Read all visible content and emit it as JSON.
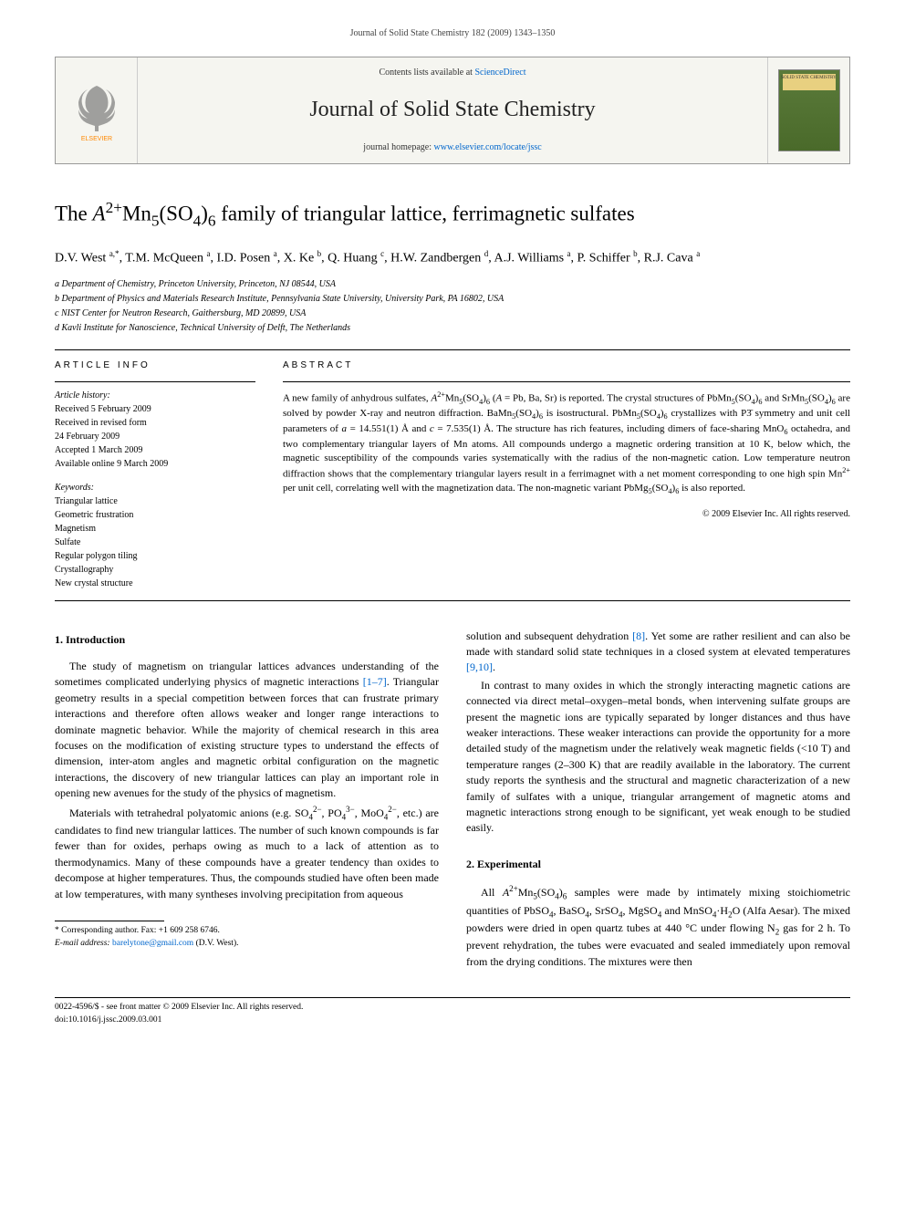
{
  "running_header": "Journal of Solid State Chemistry 182 (2009) 1343–1350",
  "banner": {
    "contents_prefix": "Contents lists available at ",
    "contents_link": "ScienceDirect",
    "journal_name": "Journal of Solid State Chemistry",
    "homepage_prefix": "journal homepage: ",
    "homepage_link": "www.elsevier.com/locate/jssc",
    "publisher": "ELSEVIER",
    "cover_text": "SOLID STATE CHEMISTRY"
  },
  "title_html": "The <i>A</i><sup>2+</sup>Mn<sub>5</sub>(SO<sub>4</sub>)<sub>6</sub> family of triangular lattice, ferrimagnetic sulfates",
  "authors_html": "D.V. West <sup>a,*</sup>, T.M. McQueen <sup>a</sup>, I.D. Posen <sup>a</sup>, X. Ke <sup>b</sup>, Q. Huang <sup>c</sup>, H.W. Zandbergen <sup>d</sup>, A.J. Williams <sup>a</sup>, P. Schiffer <sup>b</sup>, R.J. Cava <sup>a</sup>",
  "affiliations": [
    "a Department of Chemistry, Princeton University, Princeton, NJ 08544, USA",
    "b Department of Physics and Materials Research Institute, Pennsylvania State University, University Park, PA 16802, USA",
    "c NIST Center for Neutron Research, Gaithersburg, MD 20899, USA",
    "d Kavli Institute for Nanoscience, Technical University of Delft, The Netherlands"
  ],
  "info_heading": "article info",
  "history_label": "Article history:",
  "history": [
    "Received 5 February 2009",
    "Received in revised form",
    "24 February 2009",
    "Accepted 1 March 2009",
    "Available online 9 March 2009"
  ],
  "keywords_label": "Keywords:",
  "keywords": [
    "Triangular lattice",
    "Geometric frustration",
    "Magnetism",
    "Sulfate",
    "Regular polygon tiling",
    "Crystallography",
    "New crystal structure"
  ],
  "abstract_heading": "abstract",
  "abstract_html": "A new family of anhydrous sulfates, <i>A</i><sup>2+</sup>Mn<sub>5</sub>(SO<sub>4</sub>)<sub>6</sub> (<i>A</i> = Pb, Ba, Sr) is reported. The crystal structures of PbMn<sub>5</sub>(SO<sub>4</sub>)<sub>6</sub> and SrMn<sub>5</sub>(SO<sub>4</sub>)<sub>6</sub> are solved by powder X-ray and neutron diffraction. BaMn<sub>5</sub>(SO<sub>4</sub>)<sub>6</sub> is isostructural. PbMn<sub>5</sub>(SO<sub>4</sub>)<sub>6</sub> crystallizes with P3̄ symmetry and unit cell parameters of <i>a</i> = 14.551(1) Å and <i>c</i> = 7.535(1) Å. The structure has rich features, including dimers of face-sharing MnO<sub>6</sub> octahedra, and two complementary triangular layers of Mn atoms. All compounds undergo a magnetic ordering transition at 10 K, below which, the magnetic susceptibility of the compounds varies systematically with the radius of the non-magnetic cation. Low temperature neutron diffraction shows that the complementary triangular layers result in a ferrimagnet with a net moment corresponding to one high spin Mn<sup>2+</sup> per unit cell, correlating well with the magnetization data. The non-magnetic variant PbMg<sub>5</sub>(SO<sub>4</sub>)<sub>6</sub> is also reported.",
  "copyright": "© 2009 Elsevier Inc. All rights reserved.",
  "sections": {
    "intro_heading": "1.  Introduction",
    "intro_p1_html": "The study of magnetism on triangular lattices advances understanding of the sometimes complicated underlying physics of magnetic interactions <a class='ref-link' href='#'>[1–7]</a>. Triangular geometry results in a special competition between forces that can frustrate primary interactions and therefore often allows weaker and longer range interactions to dominate magnetic behavior. While the majority of chemical research in this area focuses on the modification of existing structure types to understand the effects of dimension, inter-atom angles and magnetic orbital configuration on the magnetic interactions, the discovery of new triangular lattices can play an important role in opening new avenues for the study of the physics of magnetism.",
    "intro_p2_html": "Materials with tetrahedral polyatomic anions (e.g. SO<sub>4</sub><sup>2−</sup>, PO<sub>4</sub><sup>3−</sup>, MoO<sub>4</sub><sup>2−</sup>, etc.) are candidates to find new triangular lattices. The number of such known compounds is far fewer than for oxides, perhaps owing as much to a lack of attention as to thermodynamics. Many of these compounds have a greater tendency than oxides to decompose at higher temperatures. Thus, the compounds studied have often been made at low temperatures, with many syntheses involving precipitation from aqueous",
    "intro_p3_html": "solution and subsequent dehydration <a class='ref-link' href='#'>[8]</a>. Yet some are rather resilient and can also be made with standard solid state techniques in a closed system at elevated temperatures <a class='ref-link' href='#'>[9,10]</a>.",
    "intro_p4_html": "In contrast to many oxides in which the strongly interacting magnetic cations are connected via direct metal–oxygen–metal bonds, when intervening sulfate groups are present the magnetic ions are typically separated by longer distances and thus have weaker interactions. These weaker interactions can provide the opportunity for a more detailed study of the magnetism under the relatively weak magnetic fields (&lt;10 T) and temperature ranges (2–300 K) that are readily available in the laboratory. The current study reports the synthesis and the structural and magnetic characterization of a new family of sulfates with a unique, triangular arrangement of magnetic atoms and magnetic interactions strong enough to be significant, yet weak enough to be studied easily.",
    "exp_heading": "2.  Experimental",
    "exp_p1_html": "All <i>A</i><sup>2+</sup>Mn<sub>5</sub>(SO<sub>4</sub>)<sub>6</sub> samples were made by intimately mixing stoichiometric quantities of PbSO<sub>4</sub>, BaSO<sub>4</sub>, SrSO<sub>4</sub>, MgSO<sub>4</sub> and MnSO<sub>4</sub>·H<sub>2</sub>O (Alfa Aesar). The mixed powders were dried in open quartz tubes at 440 °C under flowing N<sub>2</sub> gas for 2 h. To prevent rehydration, the tubes were evacuated and sealed immediately upon removal from the drying conditions. The mixtures were then"
  },
  "footnote": {
    "corresponding": "* Corresponding author. Fax: +1 609 258 6746.",
    "email_label": "E-mail address:",
    "email": "barelytone@gmail.com",
    "email_suffix": "(D.V. West)."
  },
  "footer": {
    "left1": "0022-4596/$ - see front matter © 2009 Elsevier Inc. All rights reserved.",
    "left2": "doi:10.1016/j.jssc.2009.03.001"
  },
  "colors": {
    "link": "#0066cc",
    "banner_bg": "#f5f5f0",
    "cover_green": "#4a6a2a",
    "elsevier_orange": "#ff8800"
  }
}
